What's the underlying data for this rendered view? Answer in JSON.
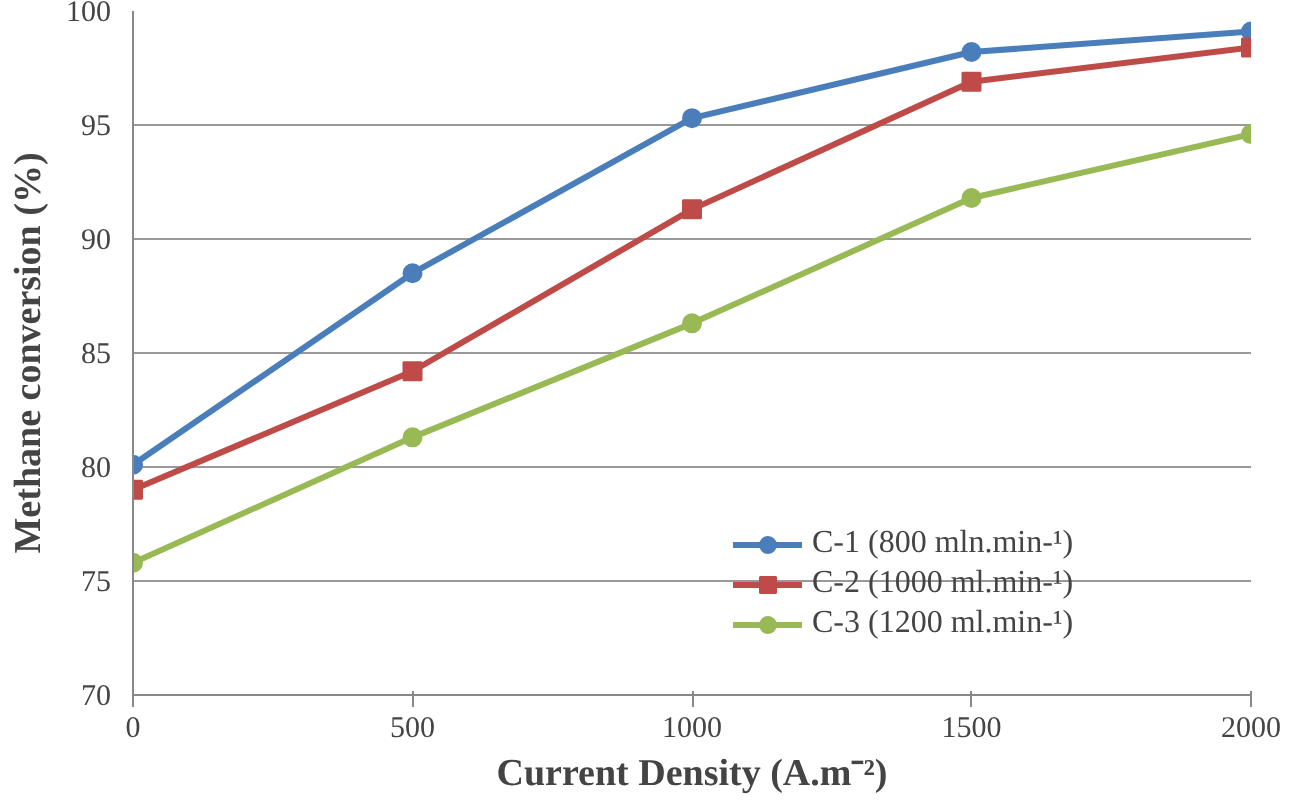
{
  "chart_data": {
    "type": "line",
    "xlabel": "Current Density (A.m⁻²)",
    "ylabel": "Methane conversion (%)",
    "x": [
      0,
      500,
      1000,
      1500,
      2000
    ],
    "series": [
      {
        "name": "C-1 (800 mln.min-¹)",
        "color": "#4a7ebb",
        "marker": "circle",
        "values": [
          80.1,
          88.5,
          95.3,
          98.2,
          99.1
        ]
      },
      {
        "name": "C-2 (1000 ml.min-¹)",
        "color": "#be4b48",
        "marker": "square",
        "values": [
          79.0,
          84.2,
          91.3,
          96.9,
          98.4
        ]
      },
      {
        "name": "C-3 (1200 ml.min-¹)",
        "color": "#98b954",
        "marker": "circle",
        "values": [
          75.8,
          81.3,
          86.3,
          91.8,
          94.6
        ]
      }
    ],
    "xlim": [
      0,
      2000
    ],
    "xticks": [
      0,
      500,
      1000,
      1500,
      2000
    ],
    "ylim": [
      70,
      100
    ],
    "yticks": [
      70,
      75,
      80,
      85,
      90,
      95,
      100
    ],
    "grid": "y",
    "legend": "right",
    "line_style": "solid"
  }
}
